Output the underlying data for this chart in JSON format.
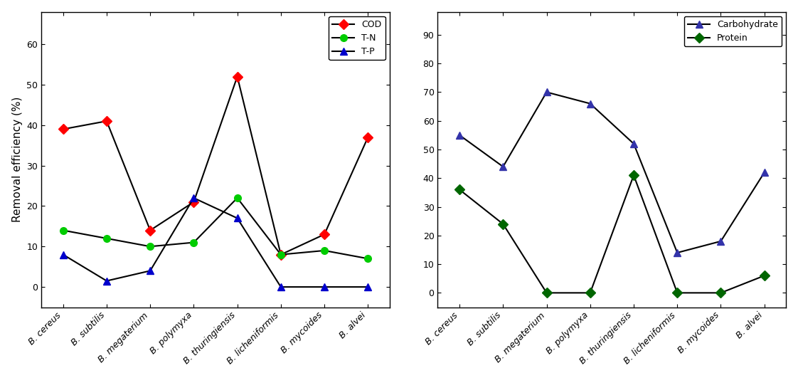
{
  "categories": [
    "B. cereus",
    "B. subtilis",
    "B. megaterium",
    "B. polymyxa",
    "B. thuringiensis",
    "B. licheniformis",
    "B. mycoides",
    "B. alvei"
  ],
  "COD": [
    39,
    41,
    14,
    21,
    52,
    8,
    13,
    37
  ],
  "TN": [
    14,
    12,
    10,
    11,
    22,
    8,
    9,
    7
  ],
  "TP": [
    8,
    1.5,
    4,
    22,
    17,
    0,
    0,
    0
  ],
  "Carbohydrate": [
    55,
    44,
    70,
    66,
    52,
    14,
    18,
    42
  ],
  "Protein": [
    36,
    24,
    0,
    0,
    41,
    0,
    0,
    6
  ],
  "COD_marker_color": "#ff0000",
  "TN_marker_color": "#00cc00",
  "TP_marker_color": "#0000cc",
  "Carbohydrate_marker_color": "#3333aa",
  "Protein_marker_color": "#006600",
  "line_color": "#000000",
  "ylabel_left": "Removal efficiency (%)",
  "ylim_left": [
    -5,
    68
  ],
  "yticks_left": [
    0,
    10,
    20,
    30,
    40,
    50,
    60
  ],
  "ylim_right": [
    -5,
    98
  ],
  "yticks_right": [
    0,
    10,
    20,
    30,
    40,
    50,
    60,
    70,
    80,
    90
  ],
  "legend1": [
    "COD",
    "T-N",
    "T-P"
  ],
  "legend2": [
    "Carbohydrate",
    "Protein"
  ],
  "tick_fontsize": 9,
  "label_fontsize": 11,
  "legend_fontsize": 9,
  "marker_size": 7,
  "linewidth": 1.5
}
